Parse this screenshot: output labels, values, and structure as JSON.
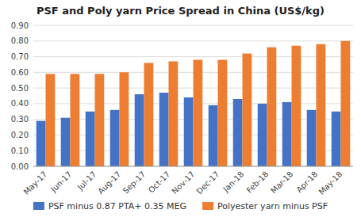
{
  "chart_data": {
    "type": "bar",
    "title": "PSF and Poly yarn Price Spread in China (US$/kg)",
    "categories": [
      "May-17",
      "Jun-17",
      "Jul-17",
      "Aug-17",
      "Sep-17",
      "Oct-17",
      "Nov-17",
      "Dec-17",
      "Jan-18",
      "Feb-18",
      "Mar-18",
      "Apr-18",
      "May-18"
    ],
    "series": [
      {
        "name": "PSF minus 0.87 PTA+ 0.35 MEG",
        "color": "#4472C4",
        "values": [
          0.29,
          0.31,
          0.35,
          0.36,
          0.46,
          0.47,
          0.44,
          0.39,
          0.43,
          0.4,
          0.41,
          0.36,
          0.35
        ]
      },
      {
        "name": "Polyester yarn minus PSF",
        "color": "#ED7D31",
        "values": [
          0.59,
          0.59,
          0.59,
          0.6,
          0.66,
          0.67,
          0.68,
          0.68,
          0.72,
          0.76,
          0.77,
          0.78,
          0.8
        ]
      }
    ],
    "ylim": [
      0.0,
      0.9
    ],
    "yticks": [
      {
        "value": 0.0,
        "label": "0.00"
      },
      {
        "value": 0.1,
        "label": "0.10"
      },
      {
        "value": 0.2,
        "label": "0.20"
      },
      {
        "value": 0.3,
        "label": "0.30"
      },
      {
        "value": 0.4,
        "label": "0.40"
      },
      {
        "value": 0.5,
        "label": "0.50"
      },
      {
        "value": 0.6,
        "label": "0.60"
      },
      {
        "value": 0.7,
        "label": "0.70"
      },
      {
        "value": 0.8,
        "label": "0.80"
      },
      {
        "value": 0.9,
        "label": "0.90"
      }
    ],
    "grid": true,
    "legend": "bottom"
  }
}
